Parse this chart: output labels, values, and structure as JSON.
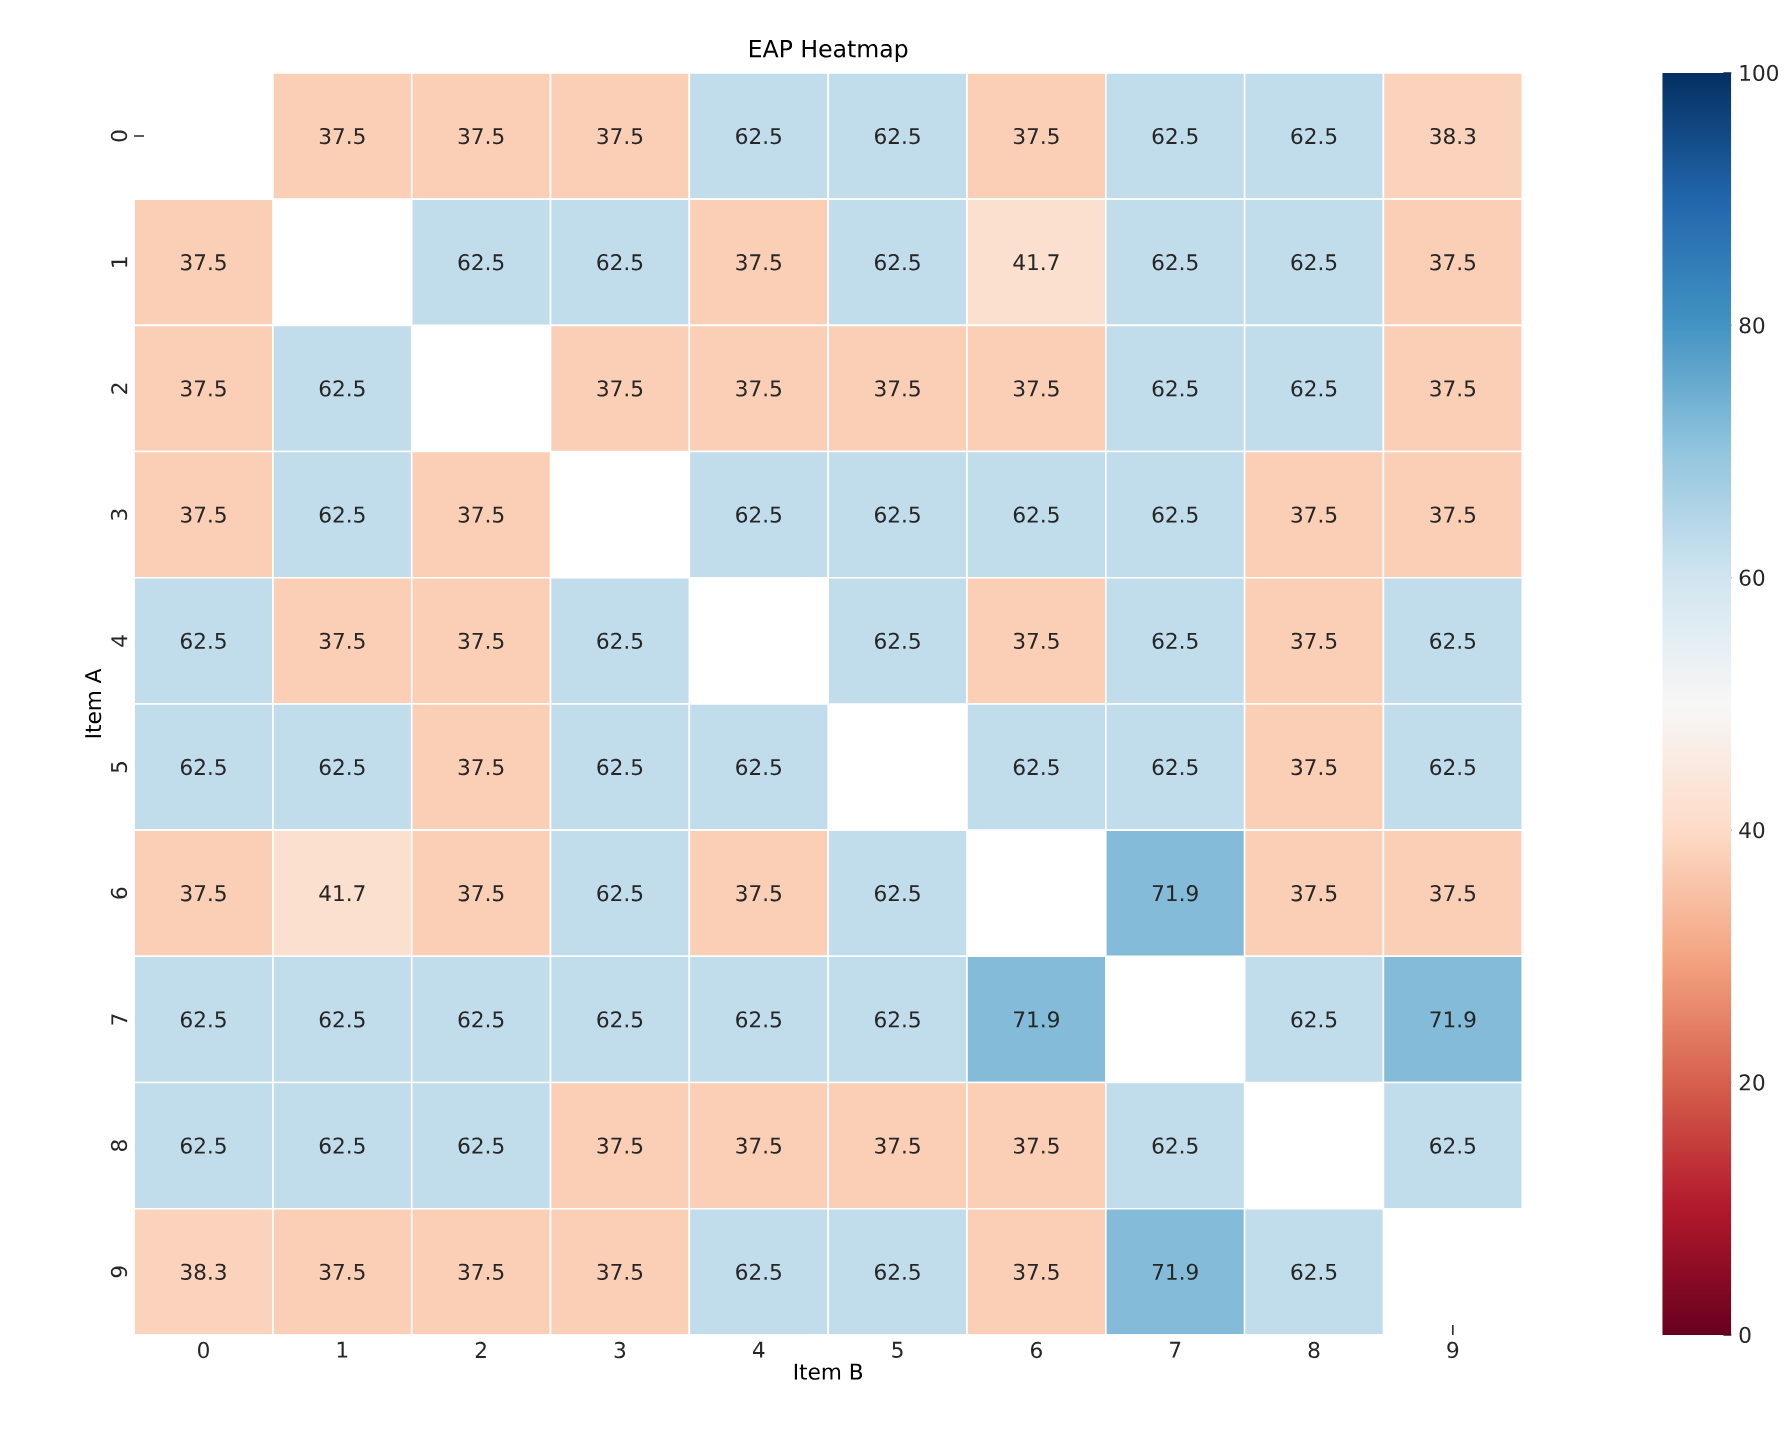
{
  "chart_data": {
    "type": "heatmap",
    "title": "EAP Heatmap",
    "xlabel": "Item B",
    "ylabel": "Item A",
    "categories": [
      "0",
      "1",
      "2",
      "3",
      "4",
      "5",
      "6",
      "7",
      "8",
      "9"
    ],
    "y_categories": [
      "0",
      "1",
      "2",
      "3",
      "4",
      "5",
      "6",
      "7",
      "8",
      "9"
    ],
    "cells": [
      [
        null,
        37.5,
        37.5,
        37.5,
        62.5,
        62.5,
        37.5,
        62.5,
        62.5,
        38.3
      ],
      [
        37.5,
        null,
        62.5,
        62.5,
        37.5,
        62.5,
        41.7,
        62.5,
        62.5,
        37.5
      ],
      [
        37.5,
        62.5,
        null,
        37.5,
        37.5,
        37.5,
        37.5,
        62.5,
        62.5,
        37.5
      ],
      [
        37.5,
        62.5,
        37.5,
        null,
        62.5,
        62.5,
        62.5,
        62.5,
        37.5,
        37.5
      ],
      [
        62.5,
        37.5,
        37.5,
        62.5,
        null,
        62.5,
        37.5,
        62.5,
        37.5,
        62.5
      ],
      [
        62.5,
        62.5,
        37.5,
        62.5,
        62.5,
        null,
        62.5,
        62.5,
        37.5,
        62.5
      ],
      [
        37.5,
        41.7,
        37.5,
        62.5,
        37.5,
        62.5,
        null,
        71.9,
        37.5,
        37.5
      ],
      [
        62.5,
        62.5,
        62.5,
        62.5,
        62.5,
        62.5,
        71.9,
        null,
        62.5,
        71.9
      ],
      [
        62.5,
        62.5,
        62.5,
        37.5,
        37.5,
        37.5,
        37.5,
        62.5,
        null,
        62.5
      ],
      [
        38.3,
        37.5,
        37.5,
        37.5,
        62.5,
        62.5,
        37.5,
        71.9,
        62.5,
        null
      ]
    ],
    "clim": [
      0,
      100
    ],
    "cticks": [
      0,
      20,
      40,
      60,
      80,
      100
    ],
    "data_labels": true
  }
}
